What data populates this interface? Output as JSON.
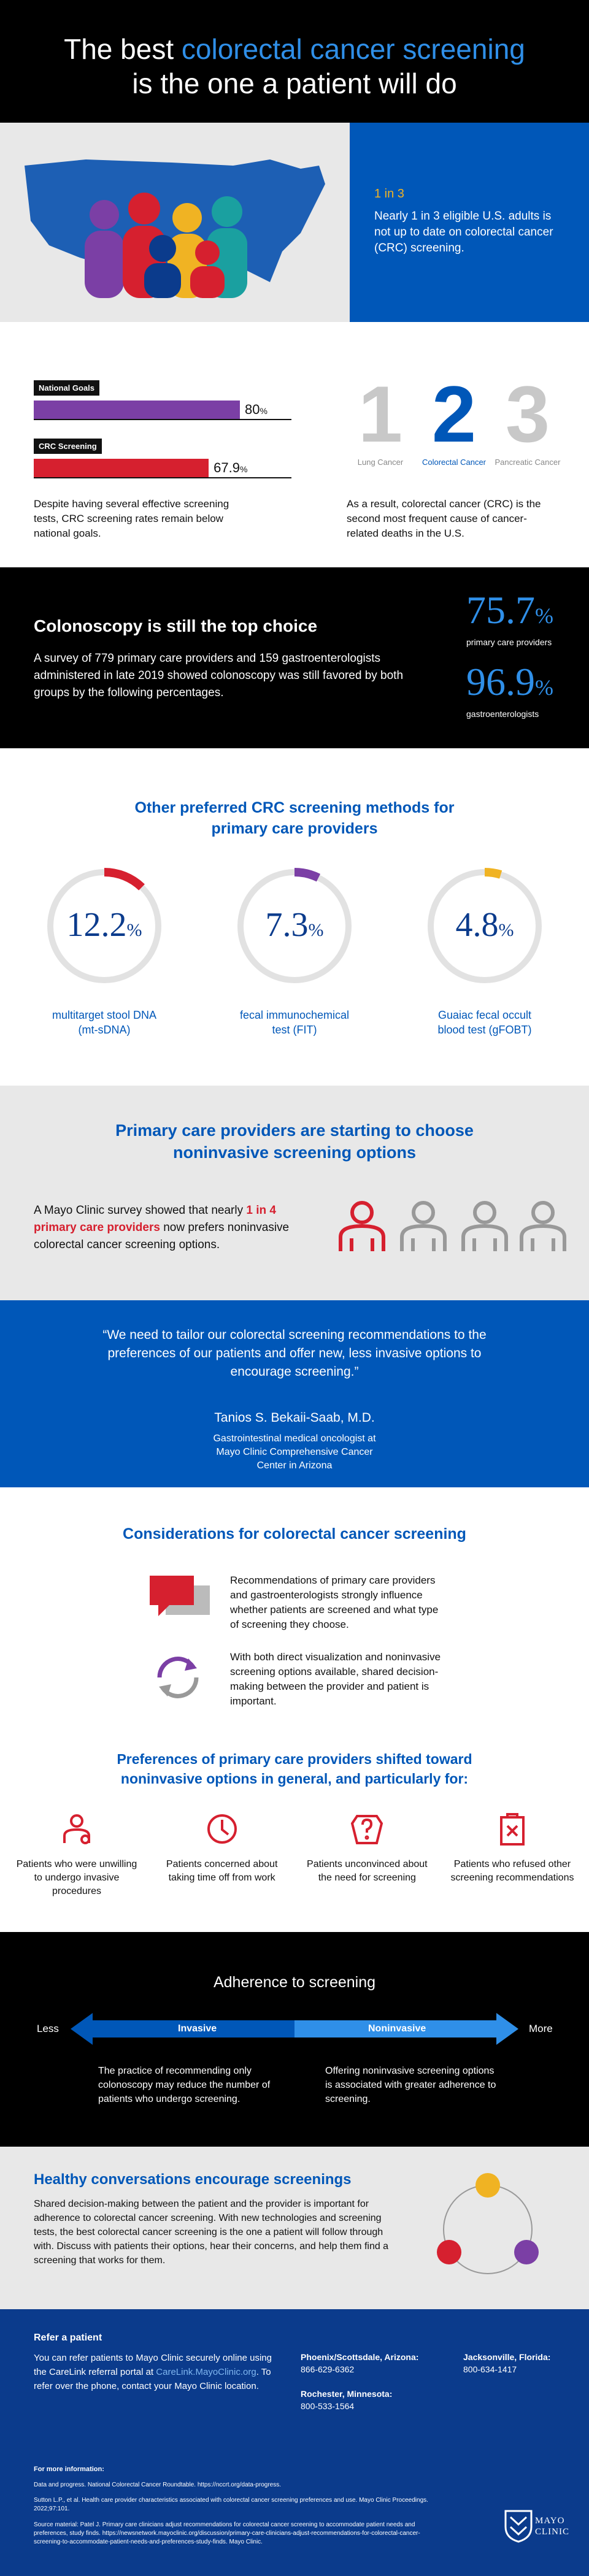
{
  "header": {
    "title_before": "The best",
    "title_highlight": "colorectal cancer screening",
    "title_after": "is the one a patient will do"
  },
  "map_panel": {
    "stat": "1 in 3",
    "text": "Nearly 1 in 3 eligible U.S. adults is not up to date on colorectal cancer (CRC) screening."
  },
  "goals": {
    "bars": [
      {
        "label": "National Goals",
        "value": 80,
        "unit": "%",
        "color": "#7b3fa5"
      },
      {
        "label": "CRC Screening",
        "value": 67.9,
        "unit": "%",
        "color": "#d6202f"
      }
    ],
    "text": "Despite having several effective screening tests, CRC screening rates remain below national goals."
  },
  "ranking": {
    "items": [
      {
        "rank": "1",
        "label": "Lung Cancer"
      },
      {
        "rank": "2",
        "label": "Colorectal Cancer"
      },
      {
        "rank": "3",
        "label": "Pancreatic Cancer"
      }
    ],
    "text": "As a result, colorectal cancer (CRC) is the second most frequent cause of cancer-related deaths in the U.S."
  },
  "colonoscopy": {
    "title": "Colonoscopy is still the top choice",
    "text": "A survey of 779 primary care providers and 159 gastroenterologists administered in late 2019 showed colonoscopy was still favored by both groups by the following percentages.",
    "stats": [
      {
        "value": 75.7,
        "unit": "%",
        "label": "primary care providers"
      },
      {
        "value": 96.9,
        "unit": "%",
        "label": "gastroenterologists"
      }
    ]
  },
  "methods": {
    "title": "Other preferred CRC screening methods for primary care providers",
    "items": [
      {
        "value": 12.2,
        "unit": "%",
        "label": "multitarget stool DNA (mt-sDNA)",
        "color": "#d6202f"
      },
      {
        "value": 7.3,
        "unit": "%",
        "label": "fecal immunochemical test (FIT)",
        "color": "#7b3fa5"
      },
      {
        "value": 4.8,
        "unit": "%",
        "label": "Guaiac fecal occult blood test (gFOBT)",
        "color": "#f0b323"
      }
    ]
  },
  "noninvasive": {
    "title": "Primary care providers are starting to choose noninvasive screening options",
    "text_before": "A Mayo Clinic survey showed that nearly",
    "text_highlight": "1 in 4 primary care providers",
    "text_after": "now prefers noninvasive colorectal cancer screening options."
  },
  "quote": {
    "text": "“We need to tailor our colorectal screening recommendations to the preferences of our patients and offer new, less invasive options to encourage screening.”",
    "name": "Tanios S. Bekaii-Saab, M.D.",
    "role": "Gastrointestinal medical oncologist at Mayo Clinic Comprehensive Cancer Center in Arizona"
  },
  "considerations": {
    "title": "Considerations for colorectal cancer screening",
    "items": [
      "Recommendations of primary care providers and gastroenterologists strongly influence whether patients are screened and what type of screening they choose.",
      "With both direct visualization and noninvasive screening options available, shared decision-making between the provider and patient is important."
    ]
  },
  "preferences": {
    "title": "Preferences of primary care providers shifted toward noninvasive options in general, and particularly for:",
    "items": [
      "Patients who were unwilling to undergo invasive procedures",
      "Patients concerned about taking time off from work",
      "Patients unconvinced about the need for screening",
      "Patients who refused other screening recommendations"
    ]
  },
  "adherence": {
    "title": "Adherence to screening",
    "less": "Less",
    "more": "More",
    "invasive": "Invasive",
    "noninvasive": "Noninvasive",
    "invasive_text": "The practice of recommending only colonoscopy may reduce the number of patients who undergo screening.",
    "noninvasive_text": "Offering noninvasive screening options is associated with greater adherence to screening."
  },
  "conversations": {
    "title": "Healthy conversations encourage screenings",
    "text": "Shared decision-making between the patient and the provider is important for adherence to colorectal cancer screening. With new technologies and screening tests, the best colorectal cancer screening is the one a patient will follow through with. Discuss with patients their options, hear their concerns, and help them find a screening that works for them."
  },
  "footer": {
    "title": "Refer a patient",
    "text_before": "You can refer patients to Mayo Clinic securely online using the CareLink referral portal at",
    "link": "CareLink.MayoClinic.org",
    "text_after": ". To refer over the phone, contact your Mayo Clinic location.",
    "locations": [
      {
        "name": "Phoenix/Scottsdale, Arizona:",
        "phone": "866-629-6362"
      },
      {
        "name": "Rochester, Minnesota:",
        "phone": "800-533-1564"
      },
      {
        "name": "Jacksonville, Florida:",
        "phone": "800-634-1417"
      }
    ],
    "more_title": "For more information:",
    "references": [
      "Data and progress. National Colorectal Cancer Roundtable. https://nccrt.org/data-progress.",
      "Sutton L.P., et al. Health care provider characteristics associated with colorectal cancer screening preferences and use. Mayo Clinic Proceedings. 2022;97:101.",
      "Source material: Patel J. Primary care clinicians adjust recommendations for colorectal cancer screening to accommodate patient needs and preferences, study finds. https://newsnetwork.mayoclinic.org/discussion/primary-care-clinicians-adjust-recommendations-for-colorectal-cancer-screening-to-accommodate-patient-needs-and-preferences-study-finds. Mayo Clinic."
    ],
    "logo_line1": "MAYO",
    "logo_line2": "CLINIC"
  }
}
